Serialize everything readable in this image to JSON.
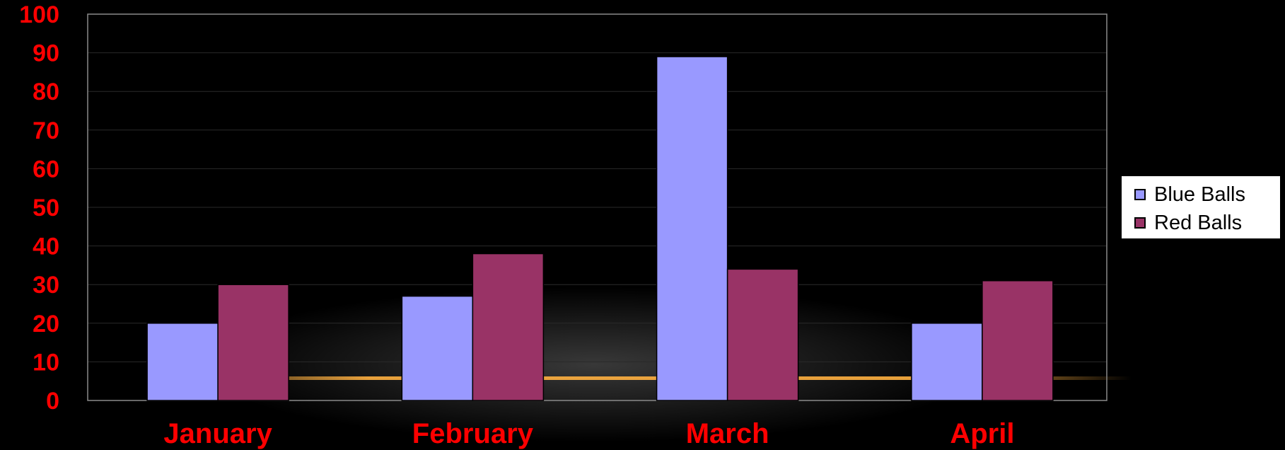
{
  "chart_data": {
    "type": "bar",
    "categories": [
      "January",
      "February",
      "March",
      "April"
    ],
    "series": [
      {
        "name": "Blue Balls",
        "values": [
          20,
          27,
          89,
          20
        ],
        "color": "#9999ff"
      },
      {
        "name": "Red Balls",
        "values": [
          30,
          38,
          34,
          31
        ],
        "color": "#993366"
      }
    ],
    "ylim": [
      0,
      100
    ],
    "y_ticks": [
      "0",
      "10",
      "20",
      "30",
      "40",
      "50",
      "60",
      "70",
      "80",
      "90",
      "100"
    ],
    "grid": true,
    "legend_position": "right",
    "colors": {
      "background": "#000000",
      "tick_label": "#ff0000",
      "category_label": "#ff0000",
      "gridline": "#2a2a2a",
      "glow": "#ffb040"
    }
  }
}
